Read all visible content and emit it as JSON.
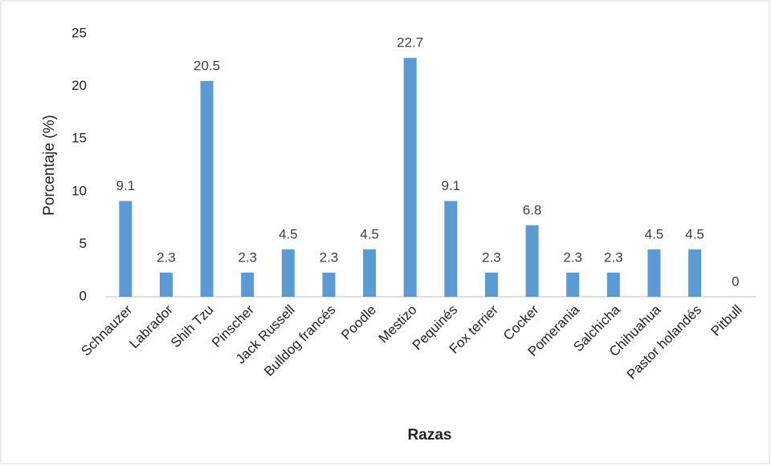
{
  "chart_data": {
    "type": "bar",
    "categories": [
      "Schnauzer",
      "Labrador",
      "Shih Tzu",
      "Pinscher",
      "Jack Russell",
      "Bulldog francés",
      "Poodle",
      "Mestizo",
      "Pequinés",
      "Fox terrier",
      "Cocker",
      "Pomerania",
      "Salchicha",
      "Chihuahua",
      "Pastor holandés",
      "Pitbull"
    ],
    "values": [
      9.1,
      2.3,
      20.5,
      2.3,
      4.5,
      2.3,
      4.5,
      22.7,
      9.1,
      2.3,
      6.8,
      2.3,
      2.3,
      4.5,
      4.5,
      0
    ],
    "color": "#5b9bd5",
    "ylim": [
      0,
      25
    ],
    "yticks": [
      0,
      5,
      10,
      15,
      20,
      25
    ],
    "grid": false,
    "x_label": "Razas",
    "y_label": "Porcentaje (%)"
  }
}
